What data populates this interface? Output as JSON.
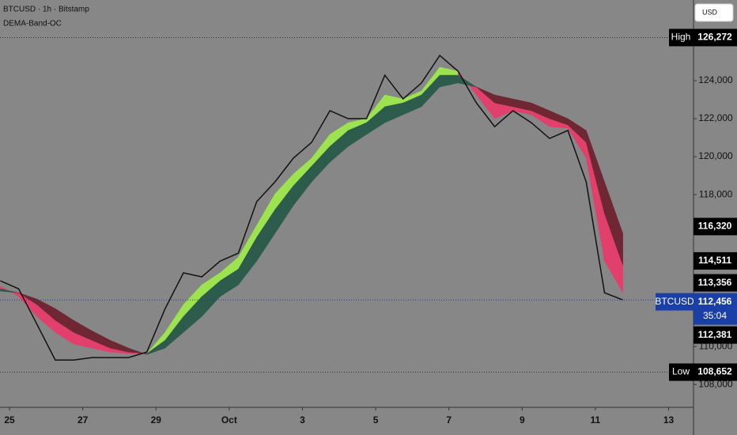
{
  "chart_data": {
    "type": "line",
    "title": "BTCUSD · 1h · Bitstamp",
    "subtitle": "DEMA-Band-OC",
    "currency": "USD",
    "x": [
      24.75,
      25.25,
      25.75,
      26.25,
      26.75,
      27.25,
      27.75,
      28.25,
      28.75,
      29.25,
      29.75,
      30.25,
      30.75,
      31.25,
      31.75,
      32.25,
      32.75,
      33.25,
      33.75,
      34.25,
      34.75,
      35.25,
      35.75,
      36.25,
      36.75,
      37.25,
      37.75,
      38.25,
      38.75,
      39.25,
      39.75,
      40.25,
      40.75,
      41.25,
      41.75
    ],
    "series": [
      {
        "color": "#111111",
        "values": [
          113460,
          113040,
          111170,
          109290,
          109290,
          109420,
          109420,
          109420,
          109710,
          112000,
          113880,
          113670,
          114500,
          114920,
          117630,
          118670,
          119920,
          120750,
          122420,
          122000,
          122000,
          124290,
          123040,
          123880,
          125330,
          124500,
          122830,
          121580,
          122420,
          121790,
          120960,
          121380,
          118670,
          112830,
          112456
        ]
      },
      {
        "up_color": "#9de24f",
        "down_color": "#e2406c",
        "values": [
          113170,
          112630,
          111580,
          110750,
          110130,
          109920,
          109710,
          109630,
          109630,
          110750,
          112210,
          113250,
          113880,
          114710,
          116380,
          118040,
          119080,
          119920,
          121170,
          121790,
          122000,
          123250,
          123040,
          123460,
          124710,
          124500,
          123250,
          122000,
          122420,
          122210,
          121580,
          121500,
          119920,
          114500,
          112830
        ]
      },
      {
        "up_color": "#2d5b4c",
        "down_color": "#6e2733",
        "values": [
          113040,
          112830,
          112210,
          111380,
          110750,
          110330,
          109920,
          109710,
          109630,
          110330,
          111580,
          112630,
          113460,
          114080,
          115750,
          117210,
          118460,
          119500,
          120540,
          121380,
          121790,
          122630,
          122830,
          123250,
          124290,
          124290,
          123670,
          122830,
          122630,
          122420,
          122000,
          121670,
          120750,
          117000,
          114290
        ]
      },
      {
        "values": [
          112920,
          112830,
          112500,
          112000,
          111380,
          110830,
          110330,
          109920,
          109580,
          109920,
          110750,
          111580,
          112630,
          113250,
          114500,
          115960,
          117420,
          118670,
          119710,
          120540,
          121170,
          121790,
          122210,
          122630,
          123670,
          123880,
          123670,
          123250,
          123040,
          122830,
          122420,
          122000,
          121380,
          118670,
          115960
        ]
      }
    ],
    "xlim": [
      24.74,
      43.68
    ],
    "ylim": [
      106800,
      128250
    ],
    "xticks": [
      {
        "value": 25,
        "label": "25"
      },
      {
        "value": 27,
        "label": "27"
      },
      {
        "value": 29,
        "label": "29"
      },
      {
        "value": 31,
        "label": "Oct"
      },
      {
        "value": 33,
        "label": "3"
      },
      {
        "value": 35,
        "label": "5"
      },
      {
        "value": 37,
        "label": "7"
      },
      {
        "value": 39,
        "label": "9"
      },
      {
        "value": 41,
        "label": "11"
      },
      {
        "value": 43,
        "label": "13"
      }
    ],
    "yticks": [
      {
        "value": 108000,
        "label": "108,000"
      },
      {
        "value": 110000,
        "label": "110,000"
      },
      {
        "value": 118000,
        "label": "118,000"
      },
      {
        "value": 120000,
        "label": "120,000"
      },
      {
        "value": 122000,
        "label": "122,000"
      },
      {
        "value": 124000,
        "label": "124,000"
      }
    ],
    "high": {
      "text": "High",
      "value": 126272,
      "label": "126,272"
    },
    "low": {
      "text": "Low",
      "value": 108652,
      "label": "108,652"
    },
    "price_labels": [
      {
        "value": 116320,
        "label": "116,320"
      },
      {
        "value": 114511,
        "label": "114,511"
      },
      {
        "value": 113356,
        "label": "113,356"
      }
    ],
    "current": {
      "symbol": "BTCUSD",
      "value": 112456,
      "label": "112,456",
      "countdown": "35:04"
    },
    "extra_label": {
      "value": 112381,
      "label": "112,381"
    }
  }
}
